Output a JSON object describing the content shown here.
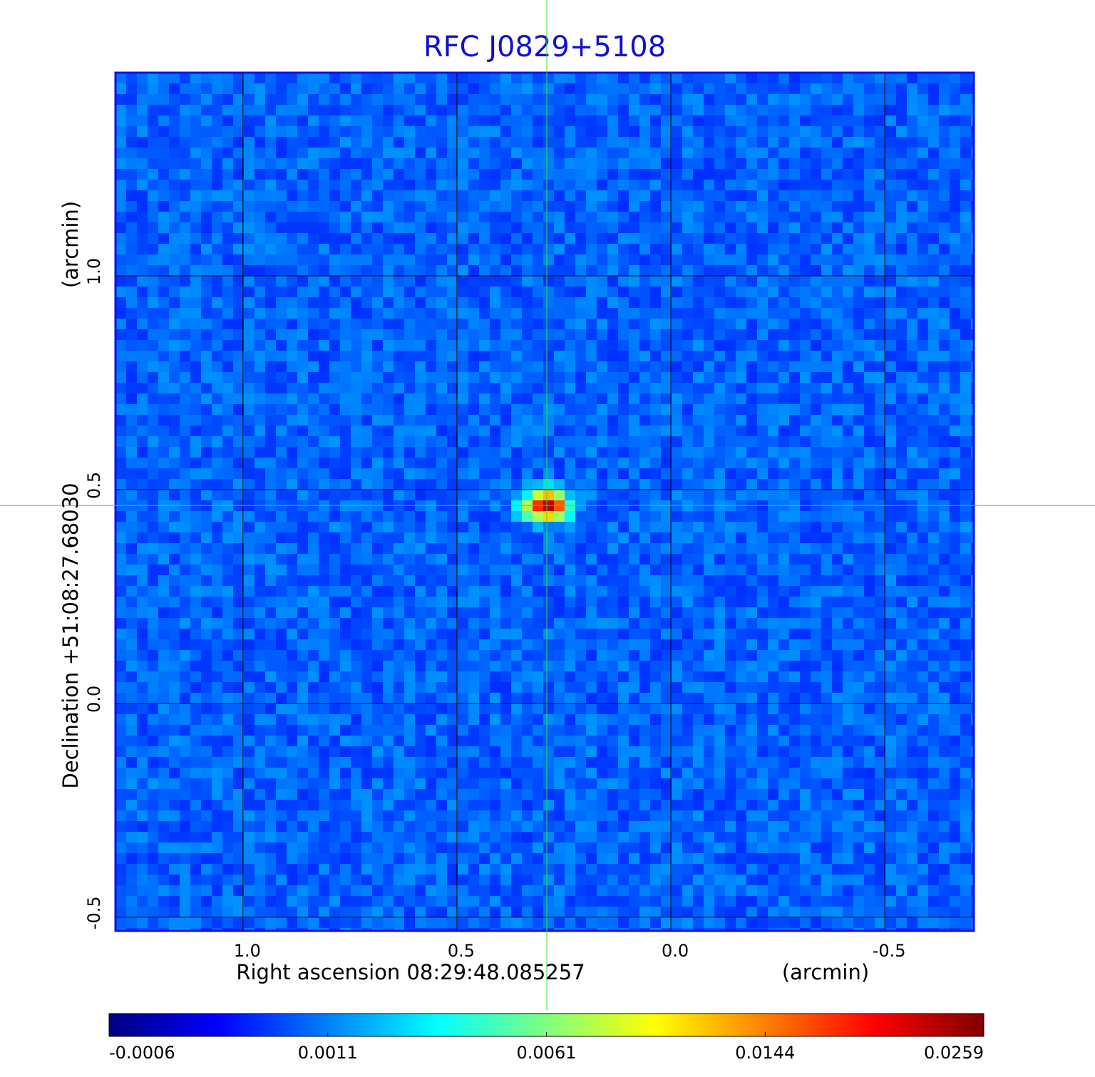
{
  "chart_data": {
    "type": "image",
    "title": "RFC J0829+5108",
    "xlabel": "Right ascension  08:29:48.085257",
    "xunit": "(arcmin)",
    "ylabel": "Declination  +51:08:27.68030",
    "yunit": "(arcmin)",
    "xlim": [
      1.298,
      -0.708
    ],
    "ylim": [
      -0.532,
      1.475
    ],
    "xticks": [
      {
        "value": 1,
        "label": "1.0"
      },
      0.5,
      {
        "value": 0,
        "label": "0.0"
      },
      -0.5
    ],
    "yticks": [
      -0.5,
      {
        "value": 0,
        "label": "0.0"
      },
      0.5,
      {
        "value": 1,
        "label": "1.0"
      }
    ],
    "grid": true,
    "crosshair": {
      "x": 0.29,
      "y": 0.463,
      "color": "#33dd33"
    },
    "colormap": "jet",
    "colorbar": {
      "ticks": [
        -0.0006,
        0.0011,
        0.0061,
        0.0144,
        0.0259
      ]
    }
  }
}
